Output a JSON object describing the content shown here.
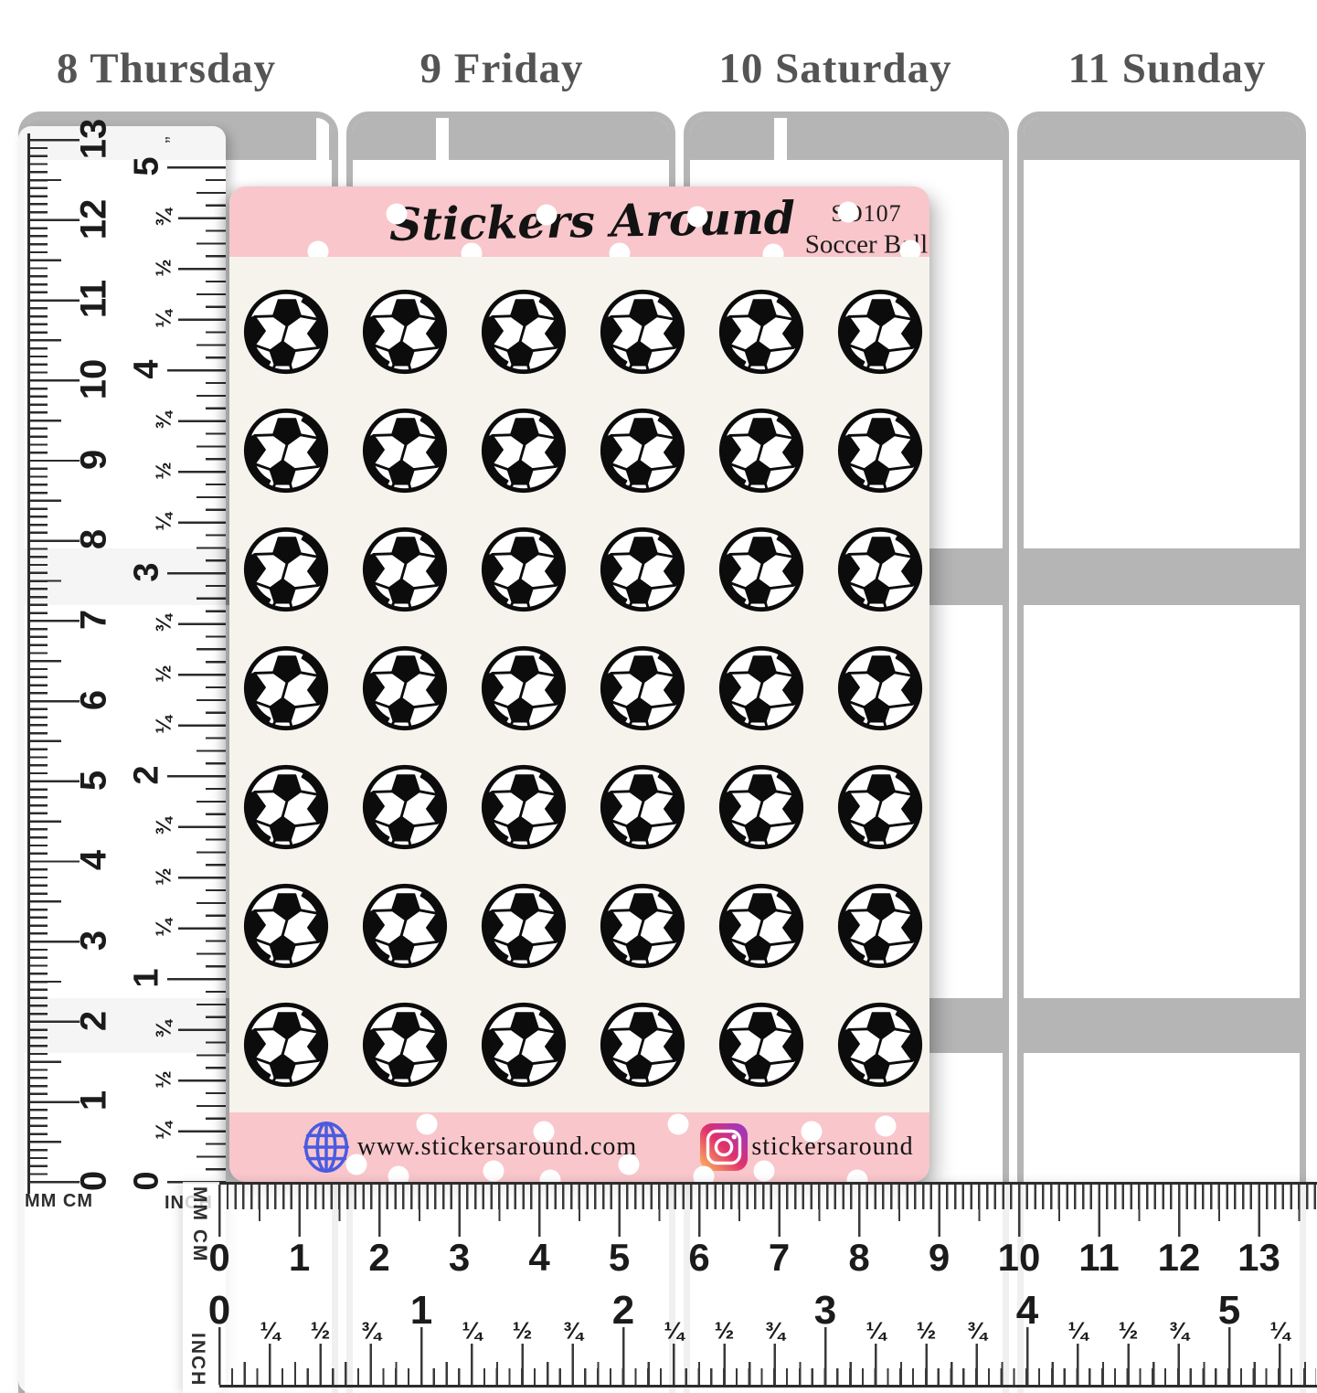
{
  "planner": {
    "day_labels": [
      "8 Thursday",
      "9 Friday",
      "10 Saturday",
      "11 Sunday"
    ]
  },
  "sheet": {
    "brand": "Stickers Around",
    "sku": "SO107",
    "product_name": "Soccer Ball",
    "sticker": "soccer-ball-icon",
    "grid": {
      "rows": 7,
      "cols": 6,
      "count": 42
    },
    "footer": {
      "website": "www.stickersaround.com",
      "instagram_handle": "stickersaround"
    }
  },
  "rulers": {
    "fractions": [
      "¼",
      "½",
      "¾"
    ],
    "vertical": {
      "cm_label": "MM CM",
      "inch_label": "INCH",
      "cm_min": 0,
      "cm_max": 13,
      "inch_min": 0,
      "inch_max": 5,
      "unit_mark": "”"
    },
    "horizontal": {
      "cm_label": "MM CM",
      "inch_label": "INCH",
      "cm_min": 0,
      "cm_max": 13,
      "inch_min": 0,
      "inch_max": 5,
      "trailing_fraction": "¼"
    }
  },
  "colors": {
    "band_pink": "#f8c6cb",
    "sheet_bg": "#f6f3ed",
    "planner_gray": "#b5b5b5",
    "day_text": "#545454",
    "ink": "#101010",
    "globe_blue": "#4a5be0",
    "instagram_gradient": [
      "#fbc05c",
      "#e1306c",
      "#8f39ce"
    ]
  }
}
